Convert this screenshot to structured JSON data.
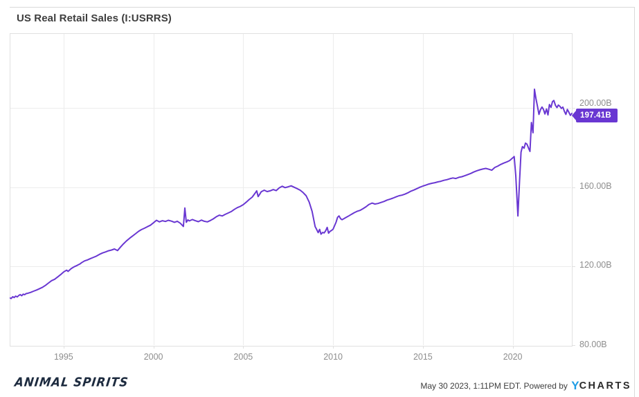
{
  "header": {
    "title": "US Real Retail Sales (I:USRRS)"
  },
  "last_value_badge": {
    "label": "197.41B",
    "color": "#6937d2"
  },
  "footer": {
    "brand": "ANIMAL SPIRITS",
    "timestamp": "May 30 2023, 1:11PM EDT. Powered by ",
    "ycharts_y": "Y",
    "ycharts_charts": "CHARTS"
  },
  "chart_data": {
    "type": "line",
    "title": "US Real Retail Sales (I:USRRS)",
    "series_name": "US Real Retail Sales",
    "unit": "USD billions",
    "legend_position": "none",
    "grid": true,
    "line_color": "#6937d2",
    "grid_color": "#ececec",
    "border_color": "#e0e0e0",
    "tick_label_color": "#8d8d8d",
    "x_range": [
      1992.0,
      2023.29
    ],
    "y_range": [
      80,
      237.9
    ],
    "x_ticks": [
      1995,
      2000,
      2005,
      2010,
      2015,
      2020
    ],
    "x_tick_labels": [
      "1995",
      "2000",
      "2005",
      "2010",
      "2015",
      "2020"
    ],
    "y_ticks": [
      80,
      120,
      160,
      200
    ],
    "y_tick_labels": [
      "80.00B",
      "120.00B",
      "160.00B",
      "200.00B"
    ],
    "last_value": 197.41,
    "points": [
      [
        1992.0,
        104.2
      ],
      [
        1992.08,
        103.9
      ],
      [
        1992.17,
        104.8
      ],
      [
        1992.25,
        104.4
      ],
      [
        1992.33,
        105.1
      ],
      [
        1992.42,
        104.7
      ],
      [
        1992.5,
        105.4
      ],
      [
        1992.58,
        105.9
      ],
      [
        1992.67,
        105.3
      ],
      [
        1992.75,
        106.1
      ],
      [
        1992.83,
        105.8
      ],
      [
        1992.92,
        106.4
      ],
      [
        1993.0,
        106.5
      ],
      [
        1993.17,
        107.0
      ],
      [
        1993.33,
        107.6
      ],
      [
        1993.5,
        108.2
      ],
      [
        1993.67,
        108.9
      ],
      [
        1993.83,
        109.6
      ],
      [
        1994.0,
        110.6
      ],
      [
        1994.17,
        111.8
      ],
      [
        1994.33,
        112.9
      ],
      [
        1994.5,
        113.6
      ],
      [
        1994.67,
        114.8
      ],
      [
        1994.83,
        115.9
      ],
      [
        1995.0,
        117.3
      ],
      [
        1995.17,
        118.2
      ],
      [
        1995.25,
        117.6
      ],
      [
        1995.42,
        119.0
      ],
      [
        1995.58,
        119.9
      ],
      [
        1995.75,
        120.6
      ],
      [
        1995.92,
        121.4
      ],
      [
        1996.0,
        122.0
      ],
      [
        1996.17,
        122.9
      ],
      [
        1996.33,
        123.4
      ],
      [
        1996.5,
        124.1
      ],
      [
        1996.67,
        124.7
      ],
      [
        1996.83,
        125.3
      ],
      [
        1997.0,
        126.2
      ],
      [
        1997.17,
        126.9
      ],
      [
        1997.33,
        127.4
      ],
      [
        1997.5,
        128.0
      ],
      [
        1997.67,
        128.4
      ],
      [
        1997.83,
        128.9
      ],
      [
        1998.0,
        128.1
      ],
      [
        1998.17,
        129.9
      ],
      [
        1998.33,
        131.5
      ],
      [
        1998.5,
        133.0
      ],
      [
        1998.67,
        134.3
      ],
      [
        1998.83,
        135.4
      ],
      [
        1999.0,
        136.6
      ],
      [
        1999.17,
        137.8
      ],
      [
        1999.33,
        138.7
      ],
      [
        1999.5,
        139.4
      ],
      [
        1999.67,
        140.2
      ],
      [
        1999.83,
        140.9
      ],
      [
        2000.0,
        142.1
      ],
      [
        2000.17,
        143.4
      ],
      [
        2000.33,
        142.6
      ],
      [
        2000.5,
        143.2
      ],
      [
        2000.67,
        142.8
      ],
      [
        2000.83,
        143.4
      ],
      [
        2001.0,
        143.0
      ],
      [
        2001.17,
        142.4
      ],
      [
        2001.33,
        142.9
      ],
      [
        2001.5,
        141.9
      ],
      [
        2001.67,
        140.3
      ],
      [
        2001.75,
        149.6
      ],
      [
        2001.83,
        142.4
      ],
      [
        2001.92,
        143.6
      ],
      [
        2002.0,
        143.1
      ],
      [
        2002.17,
        143.8
      ],
      [
        2002.33,
        143.2
      ],
      [
        2002.5,
        142.7
      ],
      [
        2002.67,
        143.5
      ],
      [
        2002.83,
        142.9
      ],
      [
        2003.0,
        142.6
      ],
      [
        2003.17,
        143.3
      ],
      [
        2003.33,
        144.1
      ],
      [
        2003.5,
        145.2
      ],
      [
        2003.67,
        146.0
      ],
      [
        2003.83,
        145.6
      ],
      [
        2004.0,
        146.4
      ],
      [
        2004.17,
        147.1
      ],
      [
        2004.33,
        147.8
      ],
      [
        2004.5,
        148.9
      ],
      [
        2004.67,
        149.8
      ],
      [
        2004.83,
        150.4
      ],
      [
        2005.0,
        151.3
      ],
      [
        2005.17,
        152.6
      ],
      [
        2005.33,
        153.9
      ],
      [
        2005.5,
        155.1
      ],
      [
        2005.67,
        157.2
      ],
      [
        2005.75,
        158.3
      ],
      [
        2005.83,
        155.4
      ],
      [
        2005.92,
        156.6
      ],
      [
        2006.0,
        157.8
      ],
      [
        2006.17,
        158.6
      ],
      [
        2006.33,
        157.9
      ],
      [
        2006.5,
        158.3
      ],
      [
        2006.67,
        158.9
      ],
      [
        2006.83,
        158.4
      ],
      [
        2007.0,
        159.8
      ],
      [
        2007.17,
        160.6
      ],
      [
        2007.33,
        159.9
      ],
      [
        2007.5,
        160.3
      ],
      [
        2007.67,
        160.8
      ],
      [
        2007.83,
        160.1
      ],
      [
        2008.0,
        159.4
      ],
      [
        2008.17,
        158.6
      ],
      [
        2008.33,
        157.4
      ],
      [
        2008.5,
        155.8
      ],
      [
        2008.67,
        152.6
      ],
      [
        2008.83,
        147.9
      ],
      [
        2009.0,
        140.2
      ],
      [
        2009.08,
        138.9
      ],
      [
        2009.17,
        137.2
      ],
      [
        2009.25,
        138.8
      ],
      [
        2009.33,
        136.4
      ],
      [
        2009.42,
        137.3
      ],
      [
        2009.5,
        137.0
      ],
      [
        2009.58,
        138.0
      ],
      [
        2009.67,
        139.8
      ],
      [
        2009.75,
        136.9
      ],
      [
        2009.83,
        137.8
      ],
      [
        2009.92,
        138.3
      ],
      [
        2010.0,
        138.9
      ],
      [
        2010.17,
        142.5
      ],
      [
        2010.25,
        144.9
      ],
      [
        2010.33,
        145.6
      ],
      [
        2010.42,
        144.2
      ],
      [
        2010.5,
        143.7
      ],
      [
        2010.67,
        144.6
      ],
      [
        2010.83,
        145.4
      ],
      [
        2011.0,
        146.3
      ],
      [
        2011.17,
        147.2
      ],
      [
        2011.33,
        147.9
      ],
      [
        2011.5,
        148.4
      ],
      [
        2011.67,
        149.3
      ],
      [
        2011.83,
        150.2
      ],
      [
        2012.0,
        151.4
      ],
      [
        2012.17,
        152.1
      ],
      [
        2012.33,
        151.6
      ],
      [
        2012.5,
        151.9
      ],
      [
        2012.67,
        152.4
      ],
      [
        2012.83,
        152.9
      ],
      [
        2013.0,
        153.6
      ],
      [
        2013.17,
        154.1
      ],
      [
        2013.33,
        154.6
      ],
      [
        2013.5,
        155.2
      ],
      [
        2013.67,
        155.8
      ],
      [
        2013.83,
        156.1
      ],
      [
        2014.0,
        156.6
      ],
      [
        2014.17,
        157.3
      ],
      [
        2014.33,
        158.1
      ],
      [
        2014.5,
        158.7
      ],
      [
        2014.67,
        159.4
      ],
      [
        2014.83,
        160.1
      ],
      [
        2015.0,
        160.7
      ],
      [
        2015.17,
        161.2
      ],
      [
        2015.33,
        161.7
      ],
      [
        2015.5,
        162.1
      ],
      [
        2015.67,
        162.4
      ],
      [
        2015.83,
        162.8
      ],
      [
        2016.0,
        163.1
      ],
      [
        2016.17,
        163.6
      ],
      [
        2016.33,
        163.9
      ],
      [
        2016.5,
        164.4
      ],
      [
        2016.67,
        164.8
      ],
      [
        2016.83,
        164.5
      ],
      [
        2017.0,
        165.1
      ],
      [
        2017.17,
        165.4
      ],
      [
        2017.33,
        165.9
      ],
      [
        2017.5,
        166.5
      ],
      [
        2017.67,
        167.1
      ],
      [
        2017.83,
        167.8
      ],
      [
        2018.0,
        168.4
      ],
      [
        2018.17,
        168.9
      ],
      [
        2018.33,
        169.3
      ],
      [
        2018.5,
        169.6
      ],
      [
        2018.67,
        169.2
      ],
      [
        2018.83,
        168.7
      ],
      [
        2019.0,
        170.1
      ],
      [
        2019.17,
        170.8
      ],
      [
        2019.33,
        171.6
      ],
      [
        2019.5,
        172.3
      ],
      [
        2019.67,
        172.9
      ],
      [
        2019.83,
        173.6
      ],
      [
        2020.0,
        174.9
      ],
      [
        2020.08,
        175.6
      ],
      [
        2020.17,
        166.0
      ],
      [
        2020.29,
        145.6
      ],
      [
        2020.38,
        163.5
      ],
      [
        2020.46,
        177.8
      ],
      [
        2020.54,
        180.6
      ],
      [
        2020.63,
        179.8
      ],
      [
        2020.71,
        182.4
      ],
      [
        2020.79,
        181.9
      ],
      [
        2020.88,
        179.8
      ],
      [
        2020.96,
        178.2
      ],
      [
        2021.04,
        192.8
      ],
      [
        2021.13,
        187.6
      ],
      [
        2021.21,
        209.6
      ],
      [
        2021.29,
        205.0
      ],
      [
        2021.38,
        200.9
      ],
      [
        2021.46,
        196.9
      ],
      [
        2021.54,
        199.2
      ],
      [
        2021.63,
        200.6
      ],
      [
        2021.71,
        199.4
      ],
      [
        2021.79,
        197.1
      ],
      [
        2021.88,
        199.6
      ],
      [
        2021.96,
        196.6
      ],
      [
        2022.04,
        201.9
      ],
      [
        2022.13,
        200.4
      ],
      [
        2022.21,
        203.3
      ],
      [
        2022.29,
        203.9
      ],
      [
        2022.38,
        201.4
      ],
      [
        2022.46,
        200.3
      ],
      [
        2022.54,
        201.6
      ],
      [
        2022.63,
        200.9
      ],
      [
        2022.71,
        199.9
      ],
      [
        2022.79,
        200.6
      ],
      [
        2022.88,
        198.3
      ],
      [
        2022.96,
        196.9
      ],
      [
        2023.04,
        199.4
      ],
      [
        2023.13,
        197.9
      ],
      [
        2023.21,
        196.4
      ],
      [
        2023.29,
        197.41
      ]
    ]
  }
}
